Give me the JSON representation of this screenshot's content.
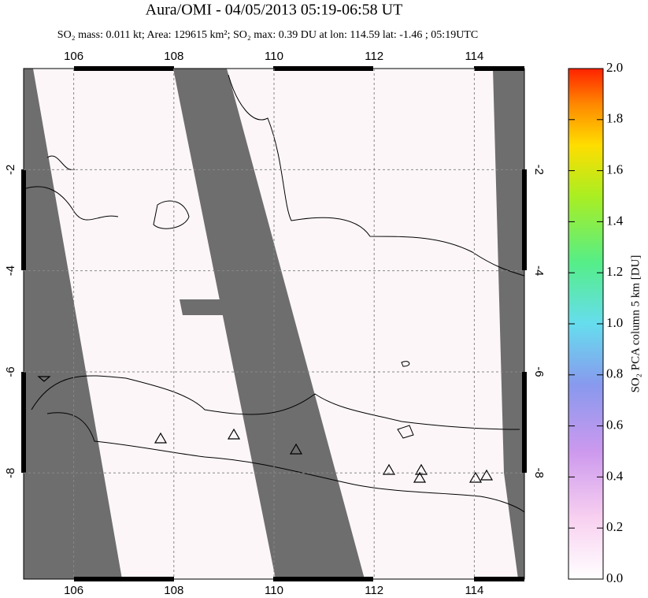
{
  "title": "Aura/OMI - 04/05/2013 05:19-06:58 UT",
  "subtitle": "SO₂ mass: 0.011 kt; Area: 129615 km²; SO₂ max: 0.39 DU at lon: 114.59 lat: -1.46 ; 05:19UTC",
  "map": {
    "xlim": [
      105,
      115
    ],
    "ylim": [
      -10.1,
      0
    ],
    "xticks": [
      106,
      108,
      110,
      112,
      114
    ],
    "yticks": [
      -2,
      -4,
      -6,
      -8
    ]
  },
  "colorbar": {
    "label": "SO₂ PCA column 5 km [DU]",
    "lim": [
      0,
      2
    ],
    "ticks": [
      {
        "value": 0,
        "label": "0.0"
      },
      {
        "value": 0.2,
        "label": "0.2"
      },
      {
        "value": 0.4,
        "label": "0.4"
      },
      {
        "value": 0.6,
        "label": "0.6"
      },
      {
        "value": 0.8,
        "label": "0.8"
      },
      {
        "value": 1,
        "label": "1.0"
      },
      {
        "value": 1.2,
        "label": "1.2"
      },
      {
        "value": 1.4,
        "label": "1.4"
      },
      {
        "value": 1.6,
        "label": "1.6"
      },
      {
        "value": 1.8,
        "label": "1.8"
      },
      {
        "value": 2,
        "label": "2.0"
      }
    ]
  }
}
